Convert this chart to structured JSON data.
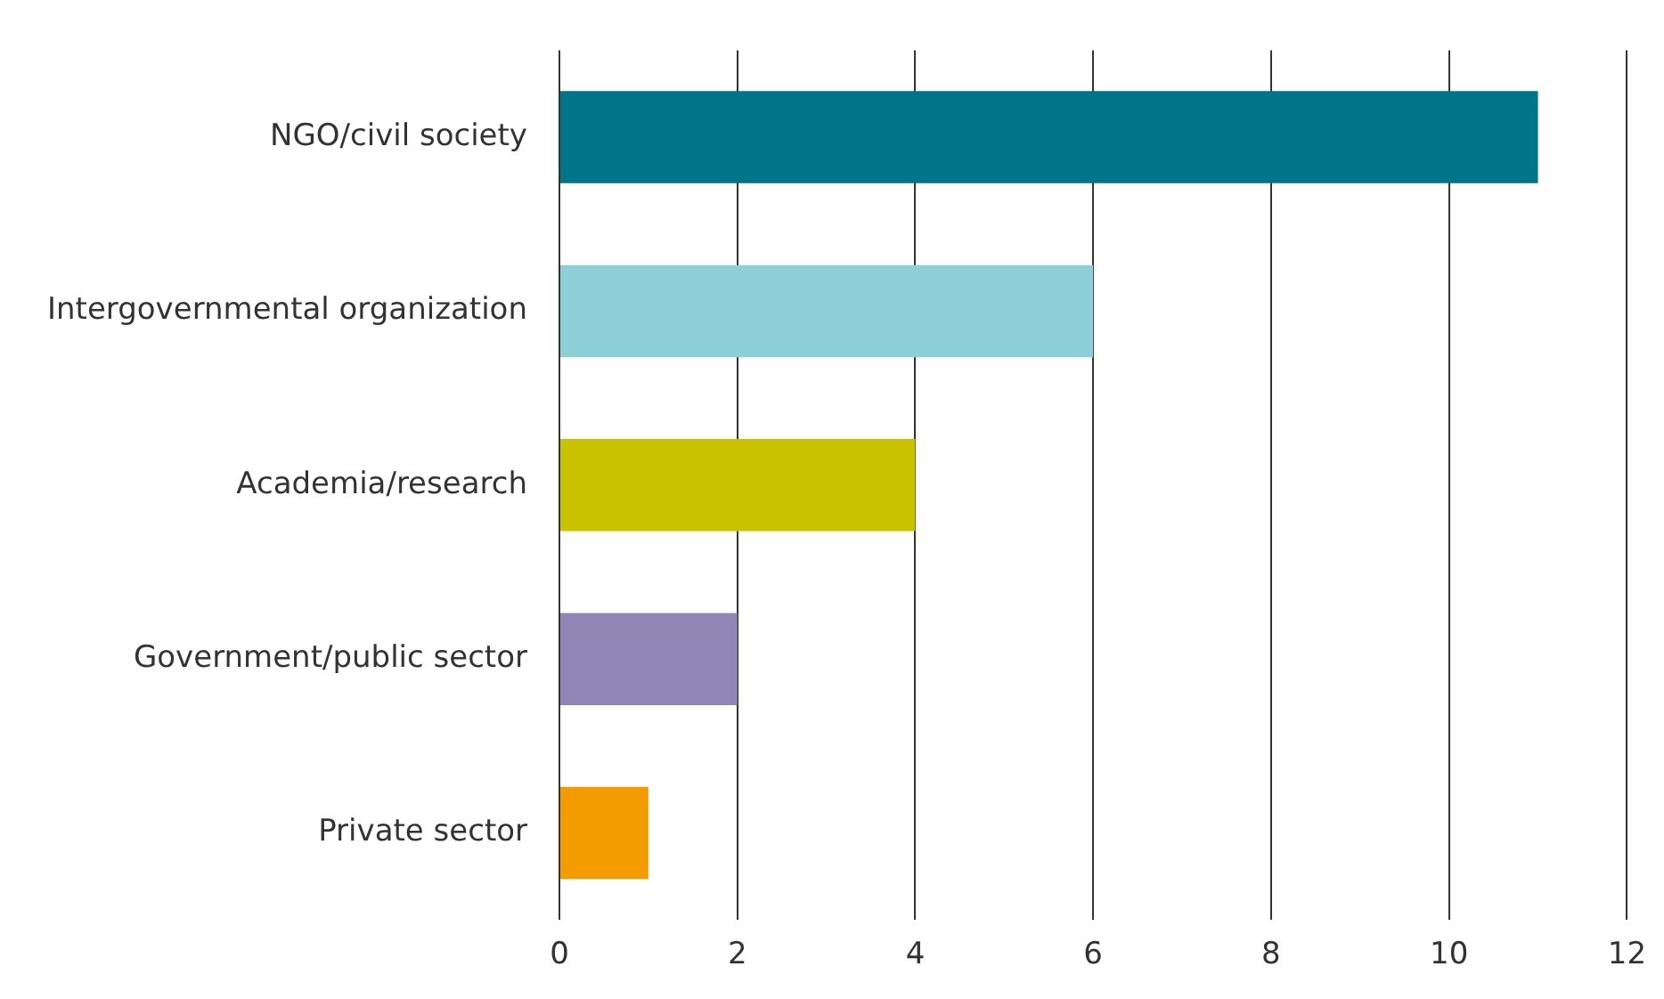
{
  "chart_data": {
    "type": "bar",
    "orientation": "horizontal",
    "categories": [
      "NGO/civil society",
      "Intergovernmental organization",
      "Academia/research",
      "Government/public sector",
      "Private sector"
    ],
    "values": [
      11,
      6,
      4,
      2,
      1
    ],
    "colors": [
      "#007489",
      "#8ccfd6",
      "#c8c200",
      "#9085b4",
      "#f29c00"
    ],
    "xlim": [
      0,
      12
    ],
    "xticks": [
      0,
      2,
      4,
      6,
      8,
      10,
      12
    ],
    "grid": "x",
    "legend": false
  }
}
